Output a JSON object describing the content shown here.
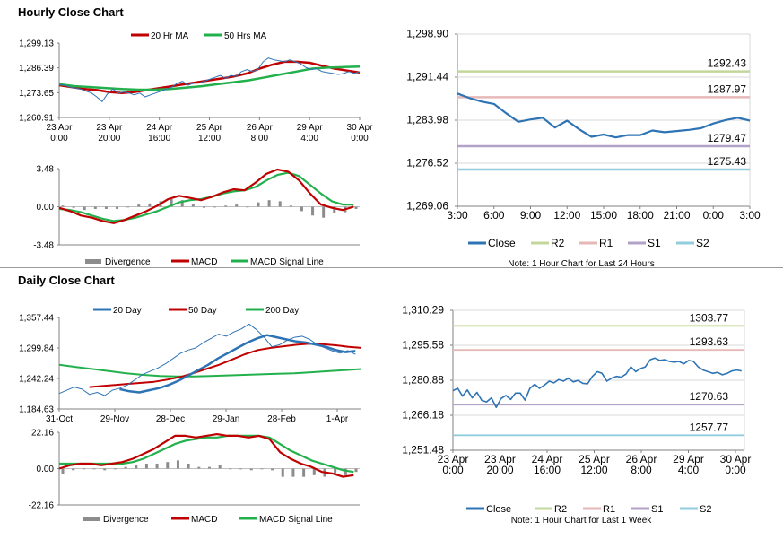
{
  "sections": {
    "hourly_title": "Hourly Close Chart",
    "daily_title": "Daily Close Chart"
  },
  "colors": {
    "ma_red": "#c00000",
    "ma_green": "#22b04c",
    "bars": "#8c8c8c",
    "close_blue": "#2e74b5",
    "r2": "#c4d79b",
    "r1": "#e6b8b7",
    "s1": "#b3a2c7",
    "s2": "#93cddd",
    "axis": "#808080"
  },
  "chart_data": [
    {
      "id": "hourly_price",
      "type": "line",
      "legend": [
        "20 Hr MA",
        "50 Hrs MA"
      ],
      "ylim": [
        1260.91,
        1299.13
      ],
      "yticks": [
        "1,299.13",
        "1,286.39",
        "1,273.65",
        "1,260.91"
      ],
      "xticks": [
        "23 Apr\n0:00",
        "23 Apr\n20:00",
        "24 Apr\n16:00",
        "25 Apr\n12:00",
        "26 Apr\n8:00",
        "29 Apr\n4:00",
        "30 Apr\n0:00"
      ],
      "series": [
        {
          "name": "Close",
          "values": [
            1278,
            1277.5,
            1276.5,
            1276,
            1275.5,
            1274.5,
            1273.5,
            1271.5,
            1269,
            1273,
            1275.5,
            1273.5,
            1274,
            1273.5,
            1272.5,
            1273.5,
            1271.5,
            1272.5,
            1273.5,
            1274.5,
            1275.5,
            1276.5,
            1278.5,
            1279.5,
            1277.5,
            1278.5,
            1278.5,
            1279.5,
            1280.5,
            1281.5,
            1282.5,
            1281,
            1282.5,
            1282,
            1284.5,
            1285.5,
            1284.5,
            1285.5,
            1289.5,
            1291.5,
            1290.5,
            1290,
            1289.5,
            1290.5,
            1289.5,
            1288.5,
            1286.5,
            1285.5,
            1286,
            1284.5,
            1284,
            1283.5,
            1283,
            1283.5,
            1284.5,
            1283.5,
            1284.5
          ]
        },
        {
          "name": "20 Hr MA",
          "values": [
            1277.5,
            1276.5,
            1275.5,
            1275,
            1274,
            1273.5,
            1274,
            1275,
            1276,
            1277,
            1278,
            1279,
            1280,
            1281,
            1282,
            1283.5,
            1286,
            1288,
            1289.5,
            1289.5,
            1289,
            1287.5,
            1286,
            1285,
            1284
          ]
        },
        {
          "name": "50 Hrs MA",
          "values": [
            1278,
            1277,
            1276.5,
            1276,
            1275.5,
            1275.2,
            1275.2,
            1275.5,
            1276.2,
            1277,
            1278,
            1279,
            1280,
            1281.5,
            1283,
            1284.5,
            1286,
            1286.5,
            1286.8,
            1287
          ]
        }
      ]
    },
    {
      "id": "hourly_macd",
      "type": "line",
      "legend": [
        "Divergence",
        "MACD",
        "MACD Signal Line"
      ],
      "ylim": [
        -3.48,
        3.48
      ],
      "yticks": [
        "3.48",
        "0.00",
        "-3.48"
      ],
      "series": [
        {
          "name": "MACD",
          "values": [
            -0.1,
            -0.4,
            -0.8,
            -1.0,
            -1.3,
            -1.5,
            -1.2,
            -0.8,
            -0.4,
            0.1,
            0.7,
            1.0,
            0.8,
            0.6,
            0.9,
            1.3,
            1.6,
            1.5,
            2.2,
            3.0,
            3.4,
            3.2,
            2.4,
            1.2,
            0.2,
            -0.1,
            -0.3,
            0.0
          ]
        },
        {
          "name": "MACD Signal Line",
          "values": [
            -0.2,
            -0.3,
            -0.5,
            -0.8,
            -1.1,
            -1.3,
            -1.2,
            -1.0,
            -0.7,
            -0.4,
            0.0,
            0.4,
            0.6,
            0.7,
            0.9,
            1.2,
            1.4,
            1.5,
            1.8,
            2.4,
            2.9,
            3.1,
            2.8,
            2.0,
            1.2,
            0.5,
            0.2,
            0.2
          ]
        },
        {
          "name": "Divergence",
          "values": [
            0.1,
            -0.1,
            -0.3,
            -0.2,
            -0.2,
            -0.2,
            0.0,
            0.2,
            0.3,
            0.5,
            0.7,
            0.6,
            0.2,
            -0.1,
            0.0,
            0.1,
            0.2,
            0.0,
            0.4,
            0.6,
            0.5,
            0.1,
            -0.4,
            -0.8,
            -1.0,
            -0.6,
            -0.5,
            -0.2
          ]
        }
      ]
    },
    {
      "id": "hourly_pivot",
      "type": "line",
      "ylim": [
        1269.06,
        1298.9
      ],
      "yticks": [
        "1,298.90",
        "1,291.44",
        "1,283.98",
        "1,276.52",
        "1,269.06"
      ],
      "xticks": [
        "3:00",
        "6:00",
        "9:00",
        "12:00",
        "15:00",
        "18:00",
        "21:00",
        "0:00",
        "3:00"
      ],
      "levels": [
        {
          "name": "R2",
          "value": 1292.43,
          "label": "1292.43"
        },
        {
          "name": "R1",
          "value": 1287.97,
          "label": "1287.97"
        },
        {
          "name": "S1",
          "value": 1279.47,
          "label": "1279.47"
        },
        {
          "name": "S2",
          "value": 1275.43,
          "label": "1275.43"
        }
      ],
      "series": [
        {
          "name": "Close",
          "values": [
            1288.6,
            1287.8,
            1287.2,
            1286.8,
            1285.2,
            1283.7,
            1284.1,
            1284.4,
            1282.7,
            1283.9,
            1282.4,
            1281.1,
            1281.5,
            1281.0,
            1281.4,
            1281.4,
            1282.2,
            1281.9,
            1282.1,
            1282.3,
            1282.6,
            1283.4,
            1284.0,
            1284.4,
            1283.9
          ]
        }
      ],
      "legend": [
        "Close",
        "R2",
        "R1",
        "S1",
        "S2"
      ],
      "note": "Note: 1 Hour Chart for Last 24 Hours"
    },
    {
      "id": "daily_price",
      "type": "line",
      "legend": [
        "20 Day",
        "50 Day",
        "200 Day"
      ],
      "ylim": [
        1184.63,
        1357.44
      ],
      "yticks": [
        "1,357.44",
        "1,299.84",
        "1,242.24",
        "1,184.63"
      ],
      "xticks": [
        "31-Oct",
        "29-Nov",
        "28-Dec",
        "29-Jan",
        "28-Feb",
        "1-Apr"
      ],
      "series": [
        {
          "name": "Close",
          "values": [
            1214,
            1220,
            1226,
            1222,
            1212,
            1216,
            1210,
            1220,
            1224,
            1230,
            1240,
            1250,
            1256,
            1262,
            1270,
            1280,
            1290,
            1296,
            1300,
            1310,
            1318,
            1326,
            1322,
            1330,
            1336,
            1345,
            1334,
            1320,
            1302,
            1306,
            1314,
            1320,
            1322,
            1316,
            1306,
            1300,
            1294,
            1290,
            1295,
            1288
          ]
        },
        {
          "name": "20 Day",
          "values": [
            1222,
            1218,
            1216,
            1220,
            1224,
            1230,
            1238,
            1248,
            1258,
            1268,
            1280,
            1290,
            1300,
            1310,
            1318,
            1324,
            1320,
            1316,
            1312,
            1310,
            1306,
            1302,
            1296,
            1292,
            1294
          ]
        },
        {
          "name": "50 Day",
          "values": [
            1226,
            1228,
            1230,
            1232,
            1234,
            1236,
            1240,
            1245,
            1252,
            1260,
            1268,
            1278,
            1288,
            1296,
            1300,
            1303,
            1306,
            1308,
            1307,
            1305,
            1302,
            1300
          ]
        },
        {
          "name": "200 Day",
          "values": [
            1268,
            1264,
            1260,
            1256,
            1252,
            1249,
            1247,
            1246,
            1246,
            1247,
            1248,
            1249,
            1250,
            1251,
            1252,
            1254,
            1256,
            1258,
            1260
          ]
        }
      ]
    },
    {
      "id": "daily_macd",
      "type": "line",
      "legend": [
        "Divergence",
        "MACD",
        "MACD Signal Line"
      ],
      "ylim": [
        -22.16,
        22.16
      ],
      "yticks": [
        "22.16",
        "0.00",
        "-22.16"
      ],
      "series": [
        {
          "name": "MACD",
          "values": [
            0,
            2,
            3,
            3,
            2,
            3,
            4,
            6,
            9,
            12,
            16,
            20,
            20,
            19,
            20,
            21,
            20,
            20,
            19,
            20,
            18,
            10,
            6,
            3,
            1,
            -2,
            -3,
            -5,
            -4
          ]
        },
        {
          "name": "MACD Signal Line",
          "values": [
            3,
            3,
            3,
            3,
            3,
            3,
            3,
            4,
            6,
            9,
            12,
            15,
            17,
            18,
            19,
            19,
            20,
            20,
            20,
            20,
            19,
            15,
            11,
            8,
            5,
            3,
            1,
            -1,
            -2
          ]
        },
        {
          "name": "Divergence",
          "values": [
            -3,
            -1,
            0,
            0,
            -1,
            0,
            1,
            2,
            3,
            3,
            4,
            5,
            3,
            1,
            1,
            2,
            0,
            0,
            -1,
            0,
            -1,
            -5,
            -5,
            -5,
            -4,
            -5,
            -4,
            -4,
            -2
          ]
        }
      ]
    },
    {
      "id": "daily_pivot",
      "type": "line",
      "ylim": [
        1251.48,
        1310.29
      ],
      "yticks": [
        "1,310.29",
        "1,295.58",
        "1,280.88",
        "1,266.18",
        "1,251.48"
      ],
      "xticks": [
        "23 Apr\n0:00",
        "23 Apr\n20:00",
        "24 Apr\n16:00",
        "25 Apr\n12:00",
        "26 Apr\n8:00",
        "29 Apr\n4:00",
        "30 Apr\n0:00"
      ],
      "levels": [
        {
          "name": "R2",
          "value": 1303.77,
          "label": "1303.77"
        },
        {
          "name": "R1",
          "value": 1293.63,
          "label": "1293.63"
        },
        {
          "name": "S1",
          "value": 1270.63,
          "label": "1270.63"
        },
        {
          "name": "S2",
          "value": 1257.77,
          "label": "1257.77"
        }
      ],
      "series": [
        {
          "name": "Close",
          "values": [
            1276.5,
            1277.5,
            1274.2,
            1276.8,
            1273.5,
            1275.8,
            1272.4,
            1271.8,
            1273.5,
            1269.5,
            1273.2,
            1274.5,
            1272.8,
            1275.5,
            1275.5,
            1272.5,
            1277.5,
            1279.2,
            1277.5,
            1278.8,
            1280.5,
            1279.8,
            1281.2,
            1280.5,
            1281.8,
            1280.2,
            1280.8,
            1279.6,
            1279.4,
            1282.5,
            1284.5,
            1283.8,
            1280.5,
            1281.8,
            1282.5,
            1282.2,
            1283.5,
            1286.5,
            1284.5,
            1285.8,
            1286.5,
            1289.5,
            1290.2,
            1289.2,
            1289.5,
            1288.8,
            1288.5,
            1288.8,
            1287.8,
            1289.2,
            1288.8,
            1286.5,
            1285.2,
            1284.5,
            1283.8,
            1284.2,
            1283.2,
            1283.8,
            1284.8,
            1285.2,
            1284.8
          ]
        }
      ],
      "legend": [
        "Close",
        "R2",
        "R1",
        "S1",
        "S2"
      ],
      "note": "Note: 1 Hour Chart for Last 1 Week"
    }
  ]
}
